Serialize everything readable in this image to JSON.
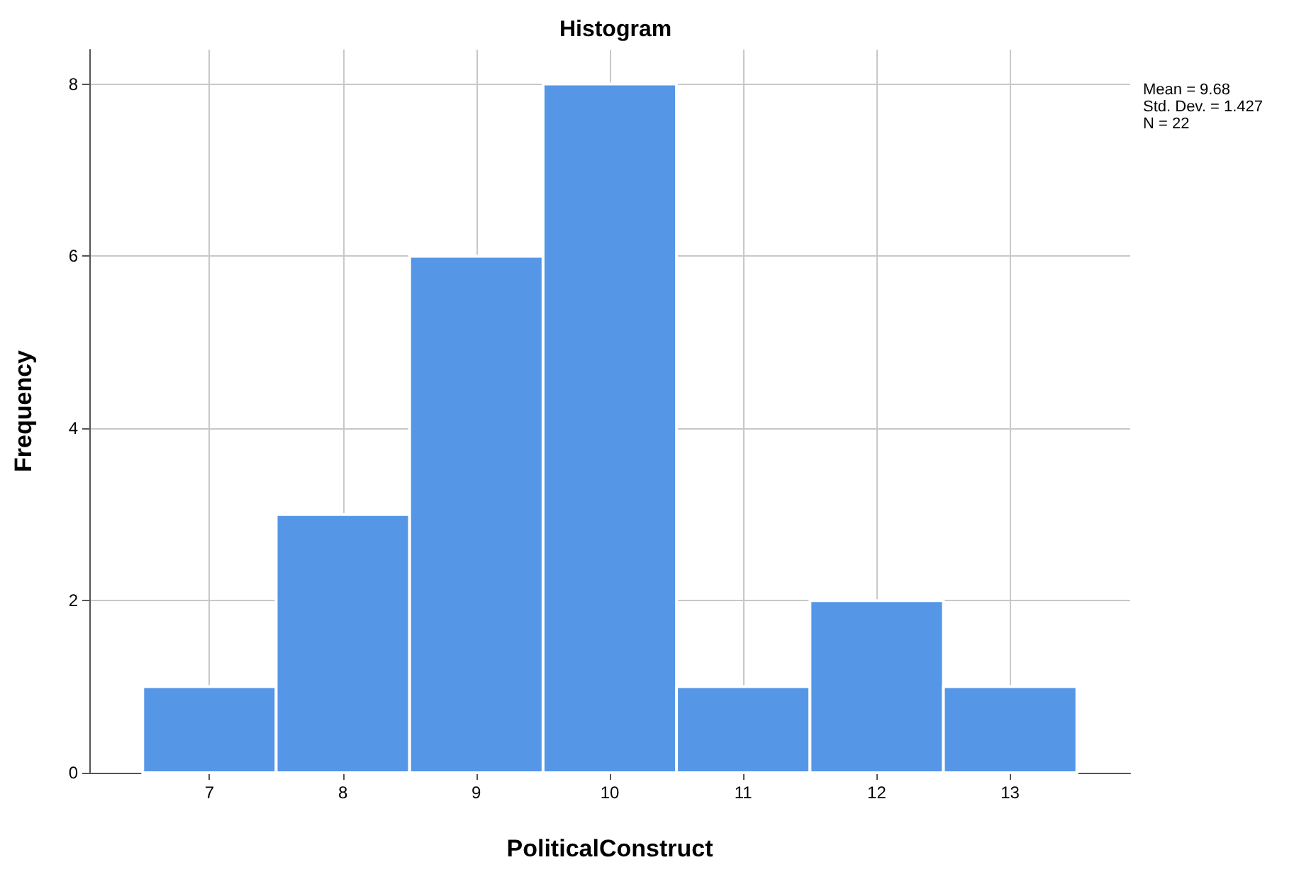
{
  "chart_data": {
    "type": "histogram",
    "title": "Histogram",
    "xlabel": "PoliticalConstruct",
    "ylabel": "Frequency",
    "bins": [
      6.5,
      7.5,
      8.5,
      9.5,
      10.5,
      11.5,
      12.5,
      13.5
    ],
    "values": [
      1,
      3,
      6,
      8,
      1,
      2,
      1
    ],
    "color": "#5596e6",
    "xlim": [
      6.1,
      13.9
    ],
    "xticks": [
      7,
      8,
      9,
      10,
      11,
      12,
      13
    ],
    "ylim": [
      0,
      8.4
    ],
    "yticks": [
      0,
      2,
      4,
      6,
      8
    ],
    "grid": true,
    "annotations": [
      "Mean = 9.68",
      "Std. Dev. = 1.427",
      "N = 22"
    ]
  }
}
